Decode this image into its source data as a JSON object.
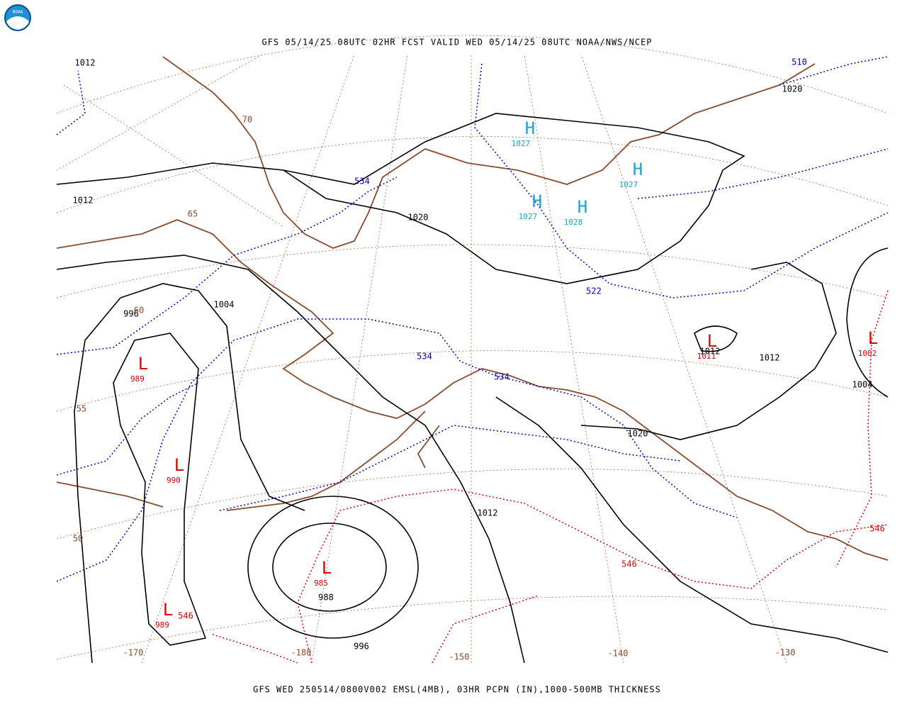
{
  "header": {
    "title": "GFS 05/14/25 08UTC 02HR FCST VALID WED 05/14/25 08UTC NOAA/NWS/NCEP"
  },
  "logo": {
    "text": "NOAA"
  },
  "isobar_labels": [
    "1012",
    "1020",
    "1012",
    "1020",
    "1004",
    "996",
    "1012",
    "1012",
    "1004",
    "1020",
    "1012",
    "988",
    "996"
  ],
  "thickness_labels": [
    "510",
    "534",
    "522",
    "534",
    "534"
  ],
  "thickness_labels_red": [
    "546",
    "546",
    "546"
  ],
  "highs": [
    {
      "symbol": "H",
      "pressure": "1027"
    },
    {
      "symbol": "H",
      "pressure": "1027"
    },
    {
      "symbol": "H",
      "pressure": "1027"
    },
    {
      "symbol": "H",
      "pressure": "1028"
    }
  ],
  "lows": [
    {
      "symbol": "L",
      "pressure": "989"
    },
    {
      "symbol": "L",
      "pressure": "990"
    },
    {
      "symbol": "L",
      "pressure": "985"
    },
    {
      "symbol": "L",
      "pressure": "989"
    },
    {
      "symbol": "L",
      "pressure": "1011"
    },
    {
      "symbol": "L",
      "pressure": "1002"
    }
  ],
  "grid_labels": [
    "70",
    "65",
    "60",
    "55",
    "50",
    "-170",
    "-180",
    "-150",
    "-140",
    "-130"
  ],
  "footer": {
    "caption": "GFS WED 250514/0800V002 EMSL(4MB), 03HR PCPN (IN),1000-500MB THICKNESS"
  }
}
